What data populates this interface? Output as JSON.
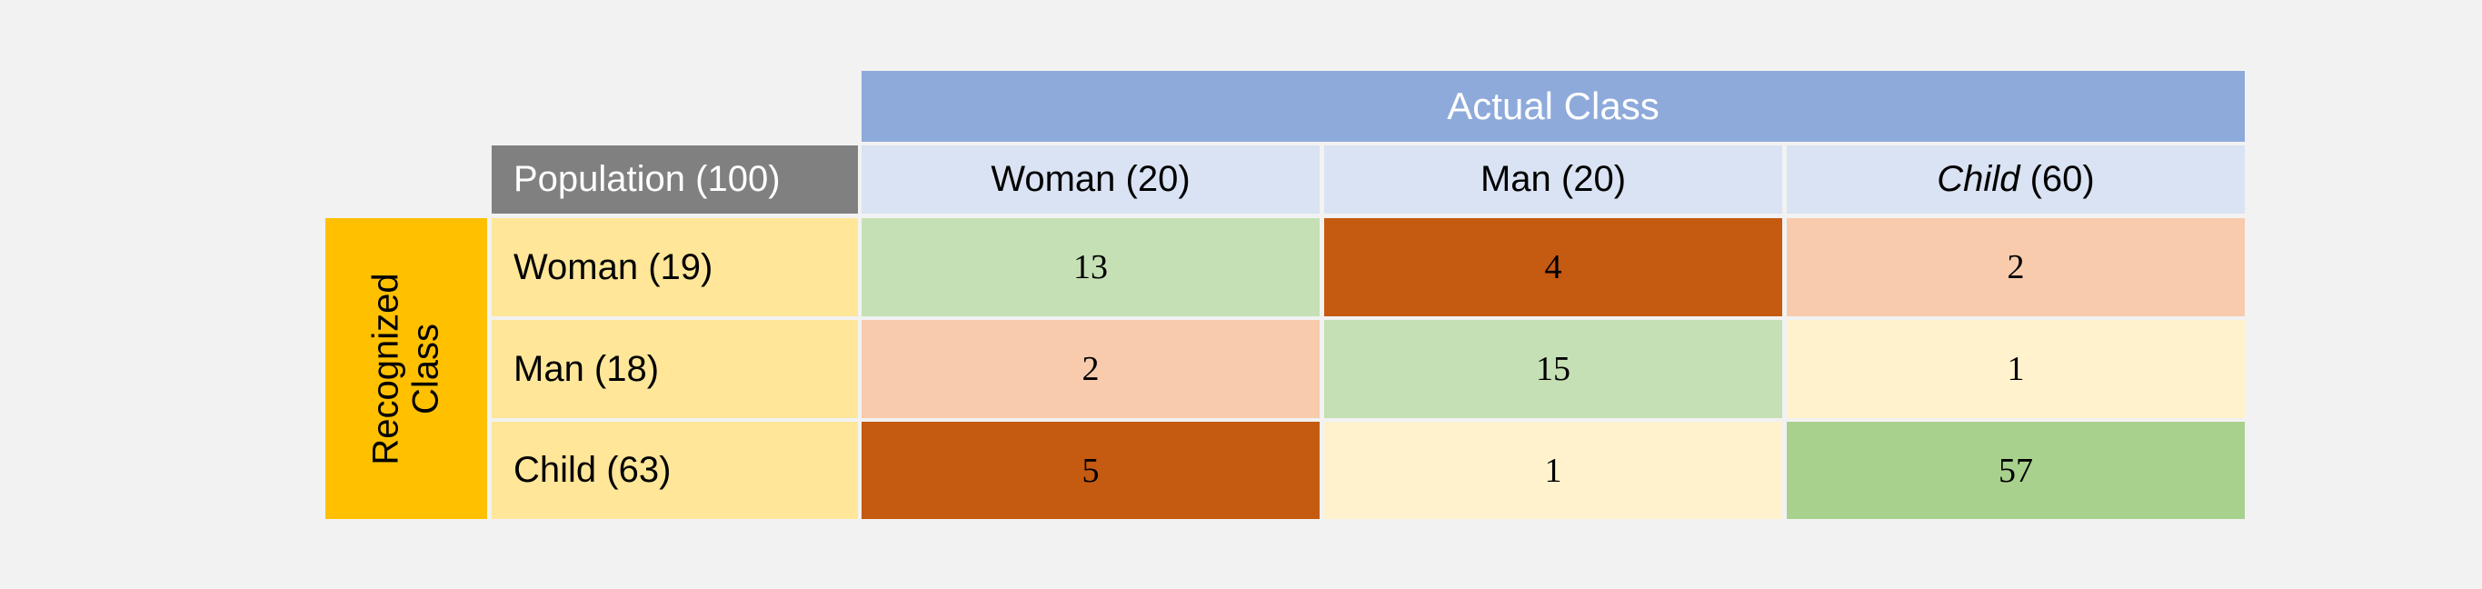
{
  "chart_data": {
    "type": "table",
    "title": "",
    "column_group_label": "Actual Class",
    "row_group_label": [
      "Recognized",
      "Class"
    ],
    "corner_label": "Population (100)",
    "columns": [
      {
        "label": "Woman (20)",
        "italic": false
      },
      {
        "label": "Man (20)",
        "italic": false
      },
      {
        "label_italic": "Child",
        "label_rest": " (60)",
        "italic": true
      }
    ],
    "rows": [
      {
        "label": "Woman (19)",
        "values": [
          "13",
          "4",
          "2"
        ]
      },
      {
        "label": "Man (18)",
        "values": [
          "2",
          "15",
          "1"
        ]
      },
      {
        "label": "Child (63)",
        "values": [
          "5",
          "1",
          "57"
        ]
      }
    ],
    "cell_colors": [
      [
        "#c5e0b4",
        "#c55a11",
        "#f8cbad"
      ],
      [
        "#f8cbad",
        "#c5e0b4",
        "#fff2cc"
      ],
      [
        "#c55a11",
        "#fff2cc",
        "#a9d18e"
      ]
    ]
  }
}
